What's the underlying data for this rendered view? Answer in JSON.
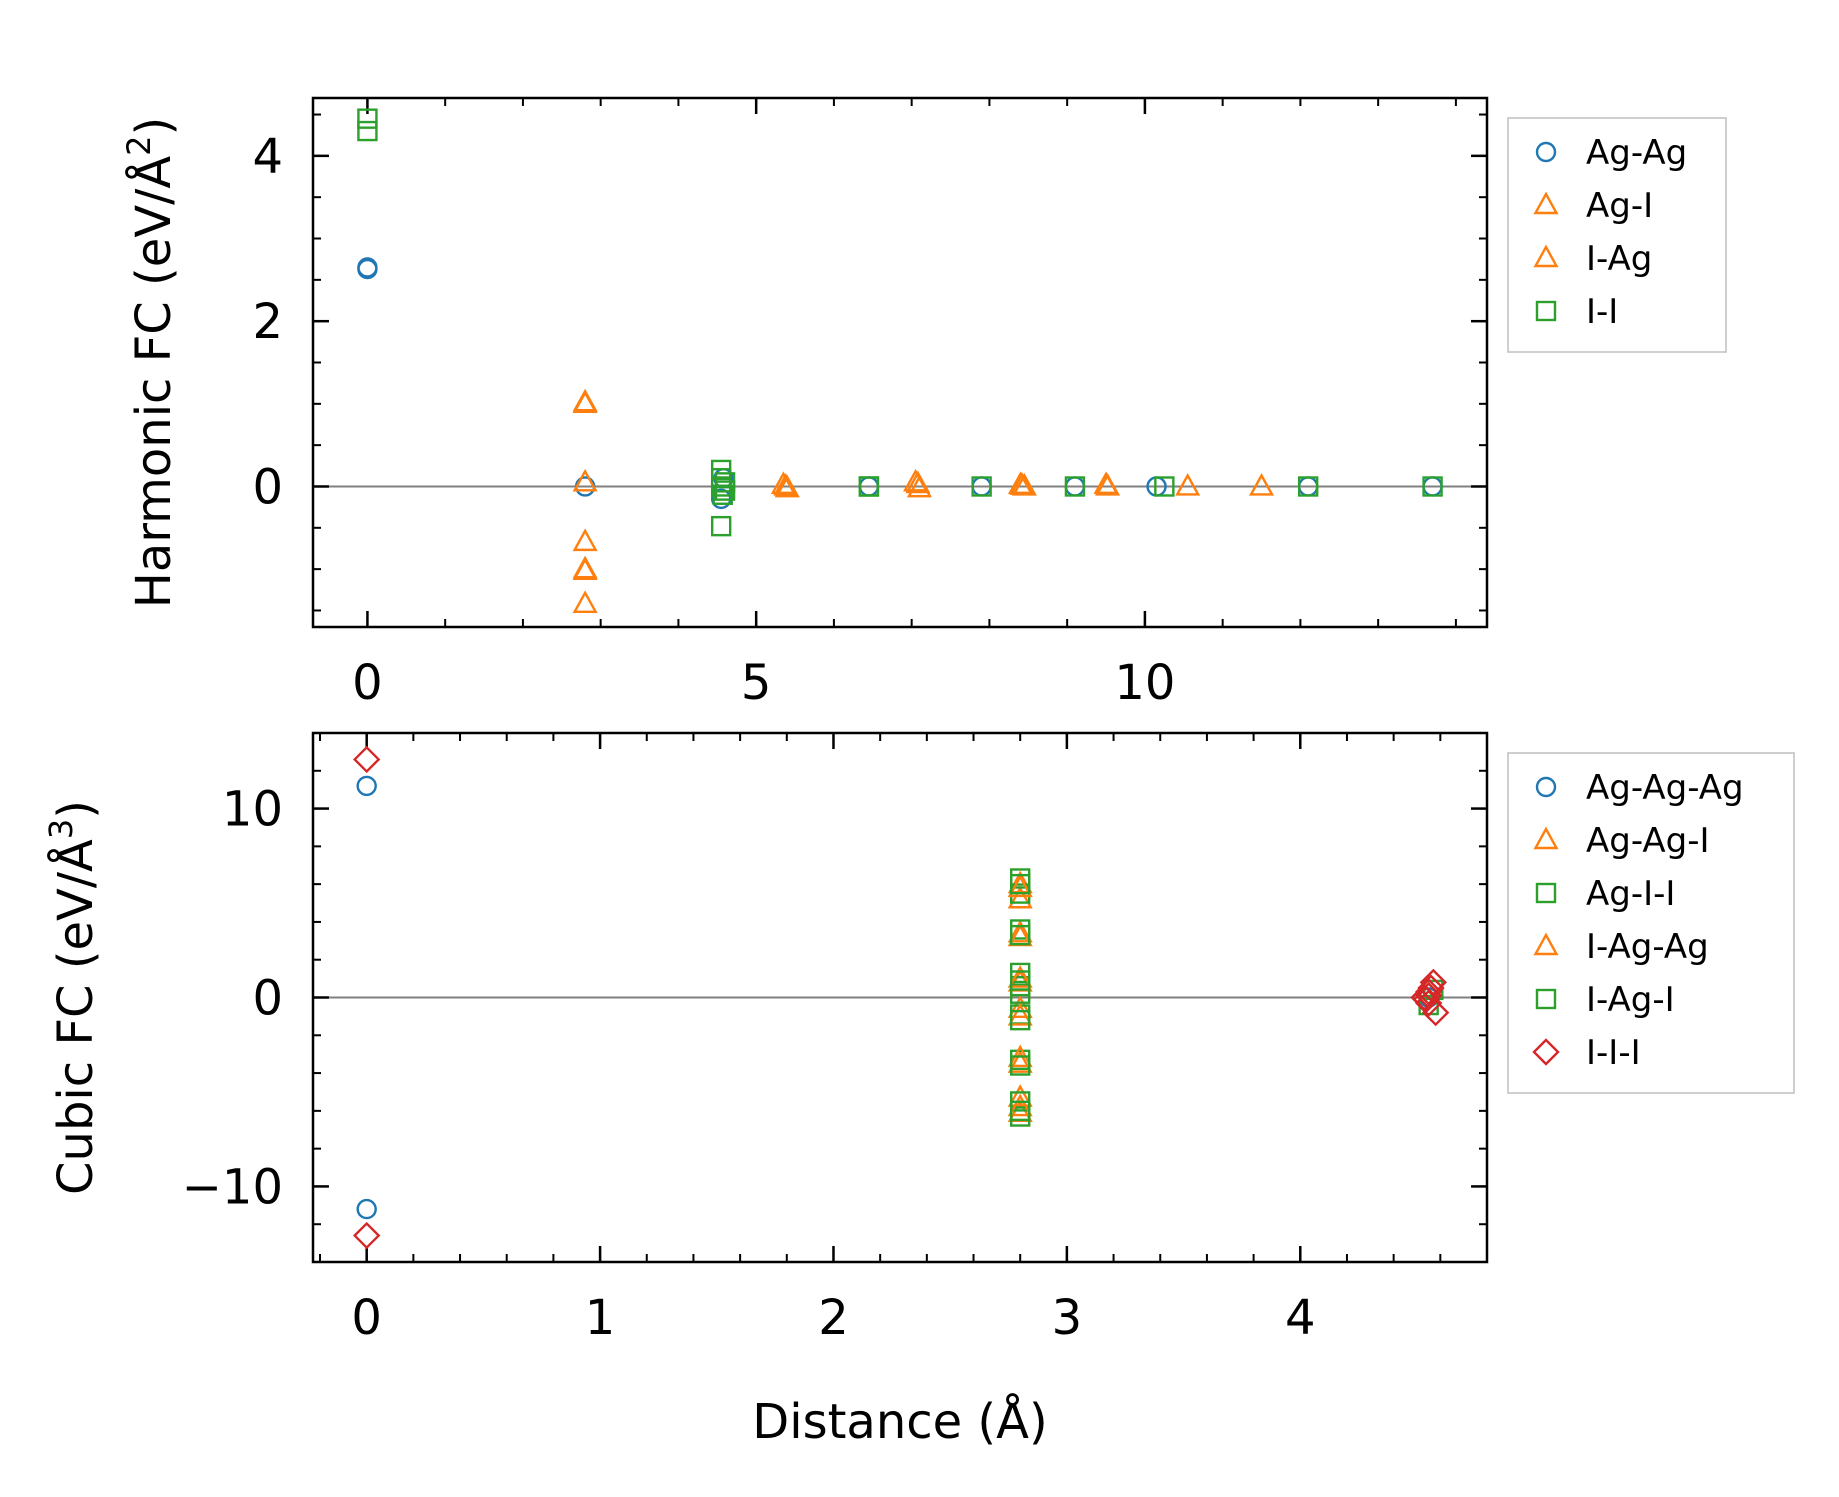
{
  "colors": {
    "blue": "#1f77b4",
    "orange": "#ff7f0e",
    "green": "#2ca02c",
    "red": "#d62728",
    "zeroline": "#808080"
  },
  "chart_data": [
    {
      "type": "scatter",
      "ylabel": "Harmonic FC (eV/Å",
      "ylabel_sup": "2",
      "ylabel_close": ")",
      "xlabel": "",
      "xlim": [
        -0.7,
        14.4
      ],
      "ylim": [
        -1.7,
        4.7
      ],
      "xticks": [
        0,
        5,
        10
      ],
      "xtick_labels": [
        "0",
        "5",
        "10"
      ],
      "yticks": [
        0,
        2,
        4
      ],
      "ytick_labels": [
        "0",
        "2",
        "4"
      ],
      "legend_position": "right-top",
      "series": [
        {
          "name": "Ag-Ag",
          "marker": "circle",
          "color": "#1f77b4",
          "x": [
            0,
            0,
            2.8,
            4.55,
            4.58,
            6.45,
            7.9,
            9.1,
            10.15,
            12.1,
            13.7
          ],
          "y": [
            2.65,
            2.63,
            0.0,
            -0.15,
            0.1,
            0.0,
            0.0,
            0.0,
            0.0,
            0.0,
            0.0
          ]
        },
        {
          "name": "Ag-I",
          "marker": "triangle",
          "color": "#ff7f0e",
          "x": [
            2.8,
            2.8,
            2.8,
            2.8,
            2.8,
            5.35,
            5.4,
            7.05,
            7.1,
            8.4,
            8.45,
            9.5,
            10.55,
            11.5
          ],
          "y": [
            1.02,
            0.05,
            -0.67,
            -1.02,
            -1.42,
            0.02,
            -0.02,
            0.05,
            -0.02,
            0.02,
            0.0,
            0.02,
            0.0,
            0.0
          ]
        },
        {
          "name": "I-Ag",
          "marker": "triangle",
          "color": "#ff7f0e",
          "x": [
            2.8,
            2.8,
            5.38,
            7.08,
            8.42,
            9.52
          ],
          "y": [
            1.0,
            -1.0,
            0.0,
            0.03,
            0.01,
            0.0
          ]
        },
        {
          "name": "I-I",
          "marker": "square",
          "color": "#2ca02c",
          "x": [
            0,
            0,
            4.55,
            4.55,
            4.55,
            4.57,
            4.6,
            4.6,
            4.55,
            6.45,
            6.45,
            7.9,
            9.1,
            10.25,
            12.1,
            13.7
          ],
          "y": [
            4.45,
            4.3,
            0.2,
            0.1,
            0.0,
            -0.1,
            0.05,
            -0.05,
            -0.48,
            0.0,
            0.0,
            0.0,
            0.0,
            0.0,
            0.0,
            0.0
          ]
        }
      ]
    },
    {
      "type": "scatter",
      "ylabel": "Cubic FC (eV/Å",
      "ylabel_sup": "3",
      "ylabel_close": ")",
      "xlabel": "Distance (Å)",
      "xlim": [
        -0.23,
        4.8
      ],
      "ylim": [
        -14.0,
        14.0
      ],
      "xticks": [
        0,
        1,
        2,
        3,
        4
      ],
      "xtick_labels": [
        "0",
        "1",
        "2",
        "3",
        "4"
      ],
      "yticks": [
        -10,
        0,
        10
      ],
      "ytick_labels": [
        "−10",
        "0",
        "10"
      ],
      "legend_position": "right-top",
      "series": [
        {
          "name": "Ag-Ag-Ag",
          "marker": "circle",
          "color": "#1f77b4",
          "x": [
            0,
            0,
            4.55
          ],
          "y": [
            11.2,
            -11.2,
            0.0
          ]
        },
        {
          "name": "Ag-Ag-I",
          "marker": "triangle",
          "color": "#ff7f0e",
          "x": [
            2.8,
            2.8,
            2.8,
            2.8,
            2.8,
            2.8,
            2.8,
            2.8
          ],
          "y": [
            6.0,
            5.2,
            3.4,
            0.8,
            -0.6,
            -3.5,
            -5.3,
            -6.1
          ]
        },
        {
          "name": "Ag-I-I",
          "marker": "square",
          "color": "#2ca02c",
          "x": [
            2.8,
            2.8,
            2.8,
            2.8,
            2.8,
            2.8,
            2.8,
            2.8,
            2.8,
            2.8
          ],
          "y": [
            6.3,
            5.5,
            3.6,
            1.3,
            0.2,
            -0.9,
            -3.3,
            -5.5,
            -6.3,
            0.6
          ]
        },
        {
          "name": "I-Ag-Ag",
          "marker": "triangle",
          "color": "#ff7f0e",
          "x": [
            2.8,
            2.8,
            2.8,
            2.8,
            2.8,
            2.8
          ],
          "y": [
            5.8,
            3.2,
            1.0,
            -1.0,
            -3.2,
            -5.8
          ]
        },
        {
          "name": "I-Ag-I",
          "marker": "square",
          "color": "#2ca02c",
          "x": [
            2.8,
            2.8,
            2.8,
            2.8,
            2.8,
            2.8,
            4.57,
            4.55
          ],
          "y": [
            6.0,
            3.3,
            0.9,
            -1.2,
            -3.6,
            -6.0,
            0.4,
            -0.4
          ]
        },
        {
          "name": "I-I-I",
          "marker": "diamond",
          "color": "#d62728",
          "x": [
            0,
            0,
            4.53,
            4.55,
            4.55,
            4.57,
            4.58,
            4.55,
            4.54,
            4.56
          ],
          "y": [
            12.6,
            -12.6,
            0.0,
            0.3,
            -0.3,
            0.8,
            -0.8,
            0.1,
            -0.1,
            0.5
          ]
        }
      ]
    }
  ]
}
